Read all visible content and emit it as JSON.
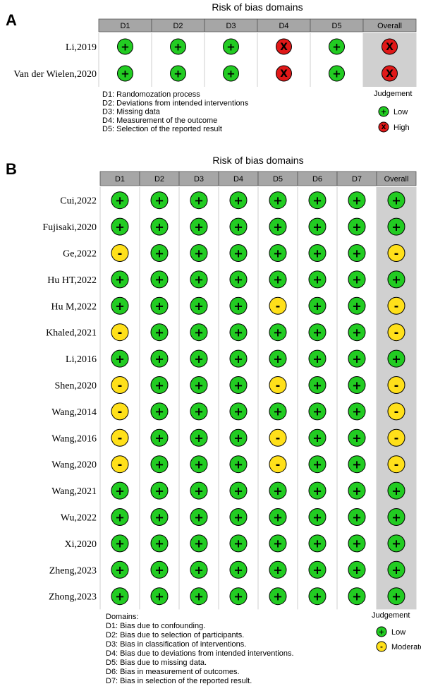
{
  "judgement_colors": {
    "low": "#22cc22",
    "high": "#e01818",
    "moderate": "#ffe01a"
  },
  "symbols": {
    "low": "+",
    "high": "X",
    "moderate": "-"
  },
  "chart_data": [
    {
      "type": "table",
      "panel_label": "A",
      "title": "Risk of bias domains",
      "domains": [
        "D1",
        "D2",
        "D3",
        "D4",
        "D5"
      ],
      "overall_label": "Overall",
      "studies": [
        "Li,2019",
        "Van der Wielen,2020"
      ],
      "judgements": [
        [
          "low",
          "low",
          "low",
          "high",
          "low",
          "high"
        ],
        [
          "low",
          "low",
          "low",
          "high",
          "low",
          "high"
        ]
      ],
      "domain_legend": [
        "D1: Randomozation process",
        "D2: Deviations from intended interventions",
        "D3: Missing data",
        "D4: Measurement of the outcome",
        "D5: Selection of the reported result"
      ],
      "legend_title": "Judgement",
      "legend_items": [
        {
          "level": "low",
          "label": "Low"
        },
        {
          "level": "high",
          "label": "High"
        }
      ]
    },
    {
      "type": "table",
      "panel_label": "B",
      "title": "Risk of bias domains",
      "domains": [
        "D1",
        "D2",
        "D3",
        "D4",
        "D5",
        "D6",
        "D7"
      ],
      "overall_label": "Overall",
      "studies": [
        "Cui,2022",
        "Fujisaki,2020",
        "Ge,2022",
        "Hu HT,2022",
        "Hu M,2022",
        "Khaled,2021",
        "Li,2016",
        "Shen,2020",
        "Wang,2014",
        "Wang,2016",
        "Wang,2020",
        "Wang,2021",
        "Wu,2022",
        "Xi,2020",
        "Zheng,2023",
        "Zhong,2023"
      ],
      "judgements": [
        [
          "low",
          "low",
          "low",
          "low",
          "low",
          "low",
          "low",
          "low"
        ],
        [
          "low",
          "low",
          "low",
          "low",
          "low",
          "low",
          "low",
          "low"
        ],
        [
          "moderate",
          "low",
          "low",
          "low",
          "low",
          "low",
          "low",
          "moderate"
        ],
        [
          "low",
          "low",
          "low",
          "low",
          "low",
          "low",
          "low",
          "low"
        ],
        [
          "low",
          "low",
          "low",
          "low",
          "moderate",
          "low",
          "low",
          "moderate"
        ],
        [
          "moderate",
          "low",
          "low",
          "low",
          "low",
          "low",
          "low",
          "moderate"
        ],
        [
          "low",
          "low",
          "low",
          "low",
          "low",
          "low",
          "low",
          "low"
        ],
        [
          "moderate",
          "low",
          "low",
          "low",
          "moderate",
          "low",
          "low",
          "moderate"
        ],
        [
          "moderate",
          "low",
          "low",
          "low",
          "low",
          "low",
          "low",
          "moderate"
        ],
        [
          "moderate",
          "low",
          "low",
          "low",
          "moderate",
          "low",
          "low",
          "moderate"
        ],
        [
          "moderate",
          "low",
          "low",
          "low",
          "moderate",
          "low",
          "low",
          "moderate"
        ],
        [
          "low",
          "low",
          "low",
          "low",
          "low",
          "low",
          "low",
          "low"
        ],
        [
          "low",
          "low",
          "low",
          "low",
          "low",
          "low",
          "low",
          "low"
        ],
        [
          "low",
          "low",
          "low",
          "low",
          "low",
          "low",
          "low",
          "low"
        ],
        [
          "low",
          "low",
          "low",
          "low",
          "low",
          "low",
          "low",
          "low"
        ],
        [
          "low",
          "low",
          "low",
          "low",
          "low",
          "low",
          "low",
          "low"
        ]
      ],
      "domain_legend_heading": "Domains:",
      "domain_legend": [
        "D1: Bias due to confounding.",
        "D2: Bias due to selection of participants.",
        "D3: Bias in classification of interventions.",
        "D4: Bias due to deviations from intended interventions.",
        "D5: Bias due to missing data.",
        "D6: Bias in measurement of outcomes.",
        "D7: Bias in selection of the reported result."
      ],
      "legend_title": "Judgement",
      "legend_items": [
        {
          "level": "low",
          "label": "Low"
        },
        {
          "level": "moderate",
          "label": "Moderate"
        }
      ]
    }
  ]
}
